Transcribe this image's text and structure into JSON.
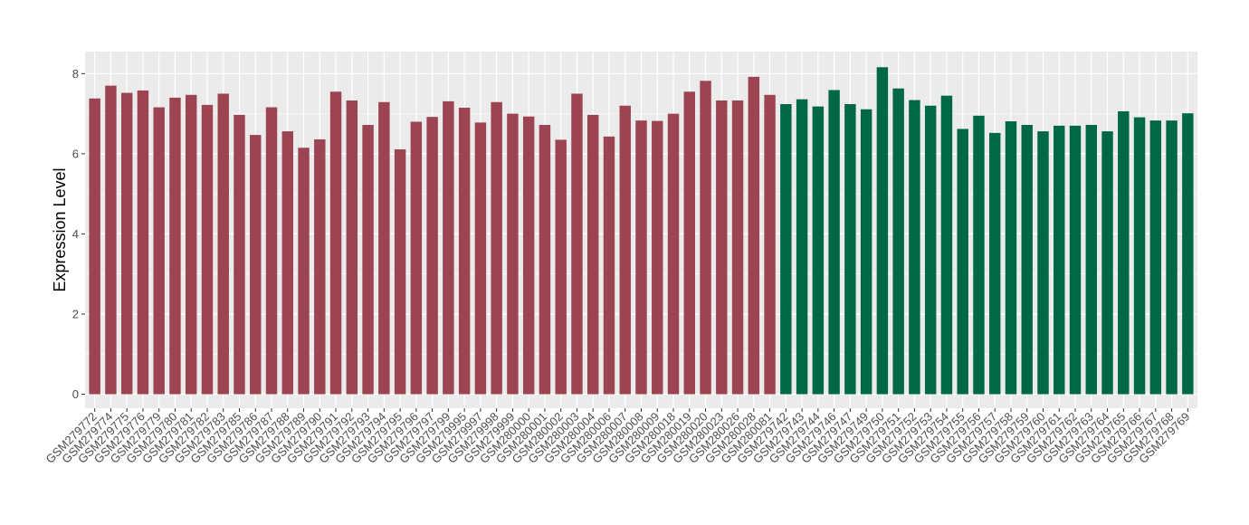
{
  "chart_data": {
    "type": "bar",
    "title": "",
    "xlabel": "",
    "ylabel": "Expression Level",
    "ylim": [
      -0.35,
      8.55
    ],
    "yticks": [
      0,
      2,
      4,
      6,
      8
    ],
    "grid": true,
    "legend": "none",
    "colors": {
      "panel_background": "#ebebeb",
      "gridline": "#ffffff",
      "group_1": "#9c4451",
      "group_2": "#006844"
    },
    "categories": [
      "GSM279772",
      "GSM279774",
      "GSM279775",
      "GSM279776",
      "GSM279779",
      "GSM279780",
      "GSM279781",
      "GSM279782",
      "GSM279783",
      "GSM279785",
      "GSM279786",
      "GSM279787",
      "GSM279788",
      "GSM279789",
      "GSM279790",
      "GSM279791",
      "GSM279792",
      "GSM279793",
      "GSM279794",
      "GSM279795",
      "GSM279796",
      "GSM279797",
      "GSM279799",
      "GSM279995",
      "GSM279997",
      "GSM279998",
      "GSM279999",
      "GSM280000",
      "GSM280001",
      "GSM280002",
      "GSM280003",
      "GSM280004",
      "GSM280006",
      "GSM280007",
      "GSM280008",
      "GSM280009",
      "GSM280018",
      "GSM280019",
      "GSM280020",
      "GSM280023",
      "GSM280026",
      "GSM280028",
      "GSM280081",
      "GSM279742",
      "GSM279743",
      "GSM279744",
      "GSM279746",
      "GSM279747",
      "GSM279749",
      "GSM279750",
      "GSM279751",
      "GSM279752",
      "GSM279753",
      "GSM279754",
      "GSM279755",
      "GSM279756",
      "GSM279757",
      "GSM279758",
      "GSM279759",
      "GSM279760",
      "GSM279761",
      "GSM279762",
      "GSM279763",
      "GSM279764",
      "GSM279765",
      "GSM279766",
      "GSM279767",
      "GSM279768",
      "GSM279769"
    ],
    "values": [
      7.38,
      7.7,
      7.52,
      7.58,
      7.16,
      7.4,
      7.47,
      7.22,
      7.5,
      6.97,
      6.47,
      7.16,
      6.56,
      6.15,
      6.36,
      7.55,
      7.33,
      6.72,
      7.29,
      6.11,
      6.8,
      6.92,
      7.31,
      7.15,
      6.78,
      7.29,
      7.0,
      6.93,
      6.72,
      6.35,
      7.5,
      6.97,
      6.43,
      7.2,
      6.83,
      6.82,
      7.0,
      7.55,
      7.82,
      7.33,
      7.33,
      7.92,
      7.47,
      7.24,
      7.36,
      7.18,
      7.59,
      7.24,
      7.11,
      8.16,
      7.63,
      7.34,
      7.2,
      7.45,
      6.62,
      6.95,
      6.52,
      6.81,
      6.72,
      6.56,
      6.7,
      6.7,
      6.72,
      6.56,
      7.06,
      6.91,
      6.83,
      6.83,
      7.01
    ],
    "groups": [
      1,
      1,
      1,
      1,
      1,
      1,
      1,
      1,
      1,
      1,
      1,
      1,
      1,
      1,
      1,
      1,
      1,
      1,
      1,
      1,
      1,
      1,
      1,
      1,
      1,
      1,
      1,
      1,
      1,
      1,
      1,
      1,
      1,
      1,
      1,
      1,
      1,
      1,
      1,
      1,
      1,
      1,
      1,
      2,
      2,
      2,
      2,
      2,
      2,
      2,
      2,
      2,
      2,
      2,
      2,
      2,
      2,
      2,
      2,
      2,
      2,
      2,
      2,
      2,
      2,
      2,
      2,
      2,
      2
    ]
  }
}
